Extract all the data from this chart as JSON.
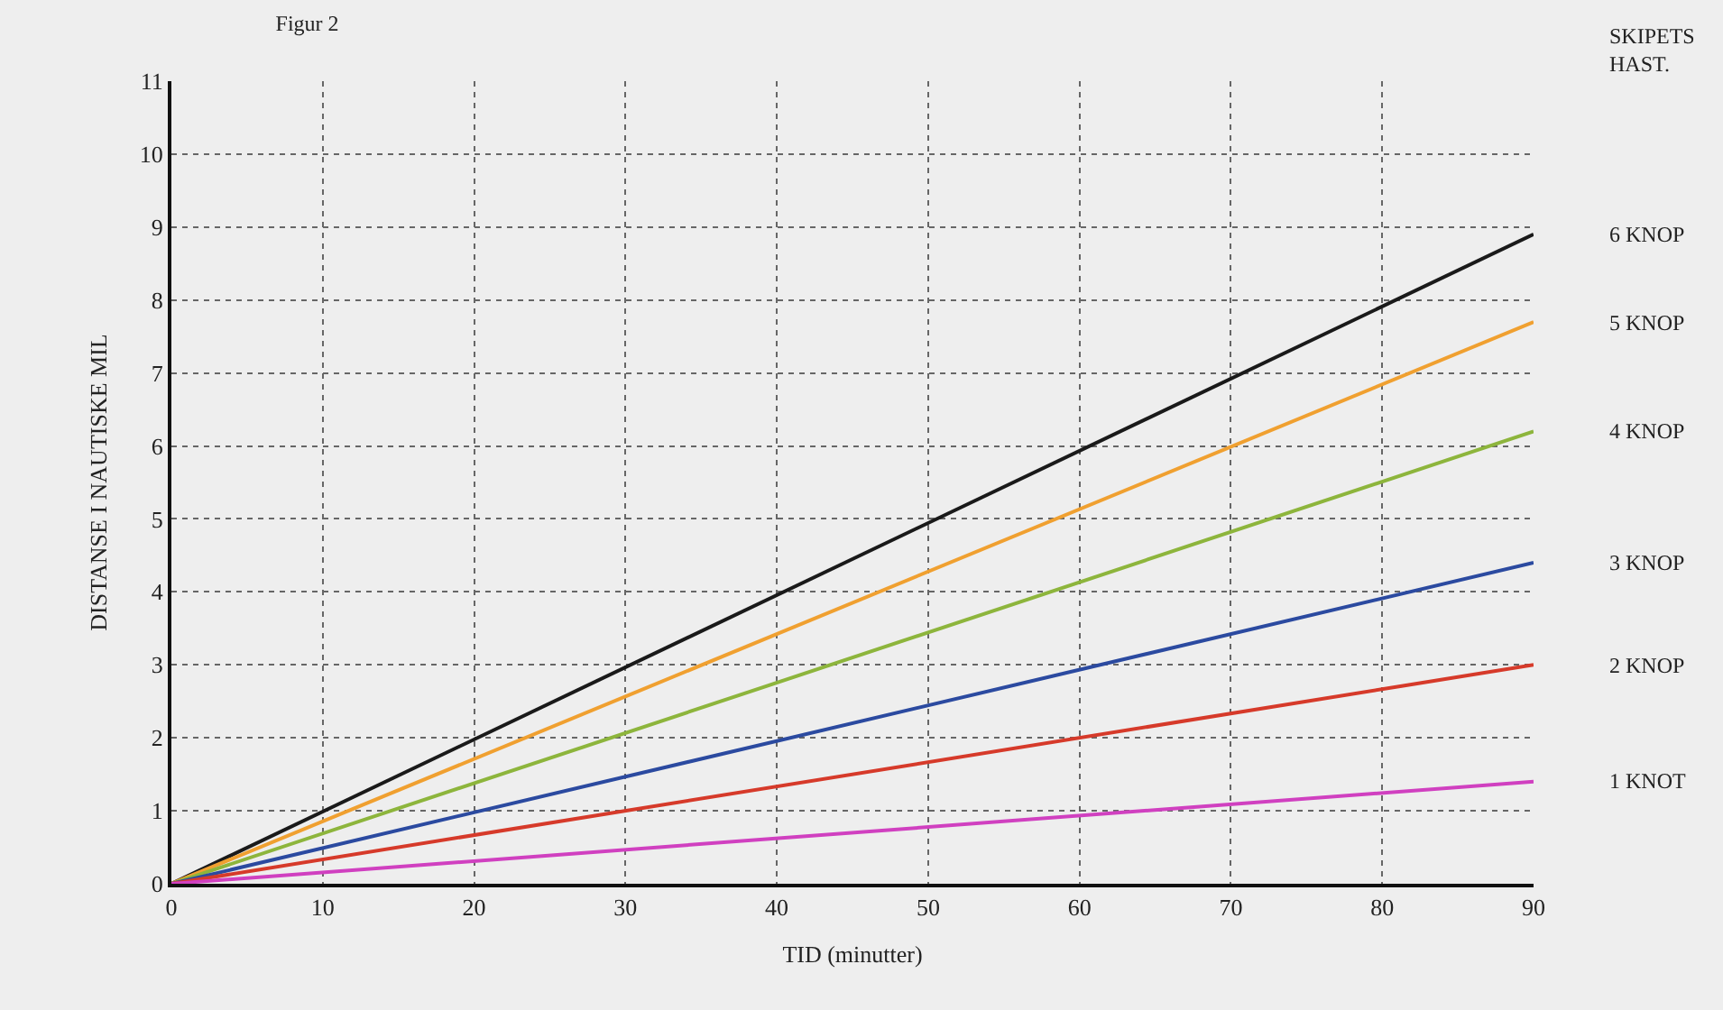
{
  "chart_data": {
    "type": "line",
    "title": "Figur 2",
    "xlabel": "TID (minutter)",
    "ylabel": "DISTANSE I NAUTISKE MIL",
    "legend_title": "SKIPETS HAST.",
    "x": [
      0,
      90
    ],
    "series": [
      {
        "name": "6 KNOP",
        "color": "#1a1a1a",
        "values": [
          0,
          8.9
        ]
      },
      {
        "name": "5 KNOP",
        "color": "#f0a030",
        "values": [
          0,
          7.7
        ]
      },
      {
        "name": "4 KNOP",
        "color": "#8db53c",
        "values": [
          0,
          6.2
        ]
      },
      {
        "name": "3 KNOP",
        "color": "#2b4aa0",
        "values": [
          0,
          4.4
        ]
      },
      {
        "name": "2 KNOP",
        "color": "#d63a2a",
        "values": [
          0,
          3.0
        ]
      },
      {
        "name": "1 KNOT",
        "color": "#d040c0",
        "values": [
          0,
          1.4
        ]
      }
    ],
    "xlim": [
      0,
      90
    ],
    "xticks": [
      0,
      10,
      20,
      30,
      40,
      50,
      60,
      70,
      80,
      90
    ],
    "ylim": [
      0,
      11
    ],
    "yticks": [
      0,
      1,
      2,
      3,
      4,
      5,
      6,
      7,
      8,
      9,
      10,
      11
    ],
    "grid": true,
    "marker": "none",
    "line_style": "solid"
  }
}
